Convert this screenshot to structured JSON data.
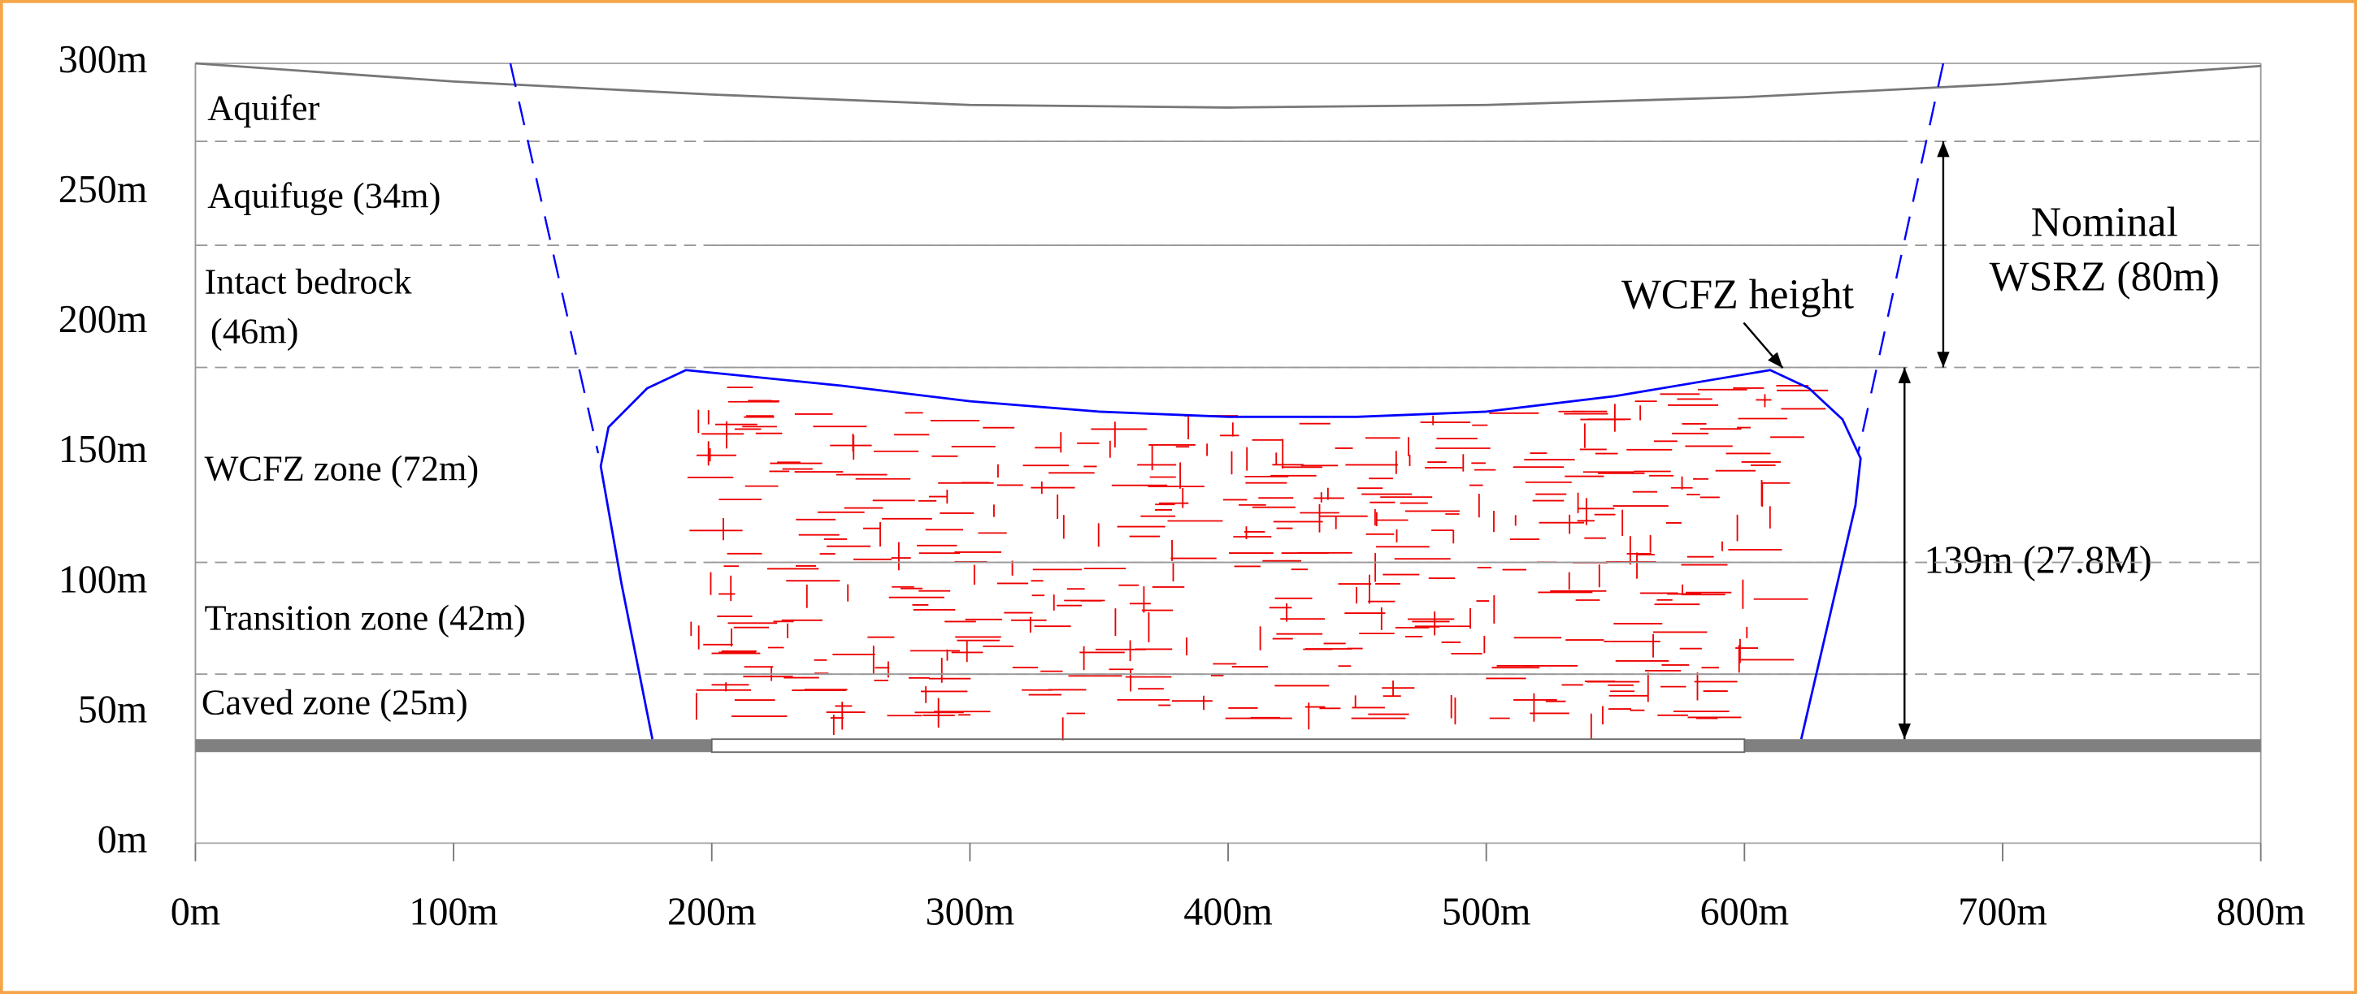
{
  "chart_data": {
    "type": "section",
    "xlim": [
      0,
      800
    ],
    "ylim": [
      0,
      300
    ],
    "xticks": [
      {
        "value": 0,
        "label": "0m"
      },
      {
        "value": 100,
        "label": "100m"
      },
      {
        "value": 200,
        "label": "200m"
      },
      {
        "value": 300,
        "label": "300m"
      },
      {
        "value": 400,
        "label": "400m"
      },
      {
        "value": 500,
        "label": "500m"
      },
      {
        "value": 600,
        "label": "600m"
      },
      {
        "value": 700,
        "label": "700m"
      },
      {
        "value": 800,
        "label": "800m"
      }
    ],
    "yticks": [
      {
        "value": 0,
        "label": "0m"
      },
      {
        "value": 50,
        "label": "50m"
      },
      {
        "value": 100,
        "label": "100m"
      },
      {
        "value": 150,
        "label": "150m"
      },
      {
        "value": 200,
        "label": "200m"
      },
      {
        "value": 250,
        "label": "250m"
      },
      {
        "value": 300,
        "label": "300m"
      }
    ],
    "surface": {
      "x": [
        0,
        100,
        200,
        300,
        400,
        500,
        600,
        700,
        800
      ],
      "y": [
        300,
        293,
        288,
        284,
        283,
        284,
        287,
        292,
        299
      ],
      "color": "#777777"
    },
    "layer_boundaries": [
      270,
      230,
      183,
      108,
      65
    ],
    "coal_seam": {
      "top": 40,
      "bottom": 35,
      "left_end": 200,
      "right_start": 600,
      "color": "#808080"
    },
    "wcfz_boundary": {
      "x": [
        177,
        165,
        157,
        160,
        175,
        190,
        250,
        300,
        350,
        400,
        450,
        500,
        550,
        610,
        625,
        638,
        645,
        643,
        622
      ],
      "y": [
        40,
        100,
        145,
        160,
        175,
        182,
        176,
        170,
        166,
        164,
        164,
        166,
        172,
        182,
        175,
        163,
        148,
        130,
        40
      ],
      "color": "#0000ff"
    },
    "break_lines": [
      {
        "x": [
          122,
          156
        ],
        "y": [
          300,
          150
        ]
      },
      {
        "x": [
          677,
          644
        ],
        "y": [
          300,
          150
        ]
      }
    ],
    "annotations": {
      "aquifer": "Aquifer",
      "aquifuge": "Aquifuge (34m)",
      "bedrock_1": "Intact bedrock",
      "bedrock_2": "(46m)",
      "wcfz_zone": "WCFZ zone (72m)",
      "transition": "Transition zone (42m)",
      "caved": "Caved zone (25m)",
      "nominal_1": "Nominal",
      "nominal_2": "WSRZ (80m)",
      "wcfz_height": "WCFZ height",
      "height_139": "139m (27.8M)"
    }
  }
}
